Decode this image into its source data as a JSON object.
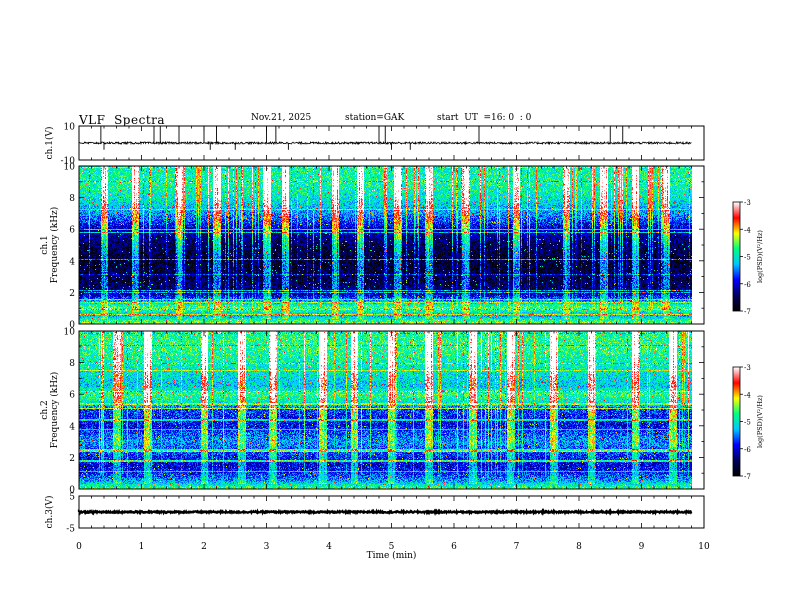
{
  "header": {
    "title": "VLF  Spectra",
    "date": "Nov.21, 2025",
    "station": "station=GAK",
    "ut_label": "start  UT  =",
    "ut_value": "16: 0  : 0"
  },
  "chart_data": [
    {
      "id": "ch1-waveform",
      "type": "line",
      "ylabel": "ch.1(V)",
      "ylim": [
        -10,
        10
      ],
      "yticks": [
        "10",
        "-10"
      ],
      "xlim": [
        0,
        10
      ],
      "baseline": 0,
      "noise_amplitude": 0.6,
      "spikes_min": [
        0.35,
        0.4,
        1.2,
        1.3,
        1.6,
        2.0,
        2.1,
        2.2,
        2.5,
        3.0,
        3.15,
        3.35,
        4.8,
        4.9,
        5.0,
        5.3,
        6.4,
        8.5,
        8.7
      ],
      "x_end_min": 9.8
    },
    {
      "id": "ch1-spectrogram",
      "type": "heatmap",
      "ylabel_top": "ch.1",
      "ylabel": "Frequency (kHz)",
      "ylim": [
        0,
        10
      ],
      "yticks": [
        "0",
        "2",
        "4",
        "6",
        "8",
        "10"
      ],
      "xlim": [
        0,
        10
      ],
      "x_end_min": 9.8,
      "colorbar": {
        "label": "log(PSD)(V²/Hz)",
        "range": [
          -7,
          -3
        ],
        "ticks": [
          "-3",
          "-4",
          "-5",
          "-6",
          "-7"
        ]
      },
      "profile_freq_khz": [
        0,
        0.5,
        1,
        2,
        3,
        4,
        5,
        6,
        6.5,
        7,
        8,
        9,
        10
      ],
      "profile_log_psd": [
        -4.4,
        -5.3,
        -4.6,
        -6.4,
        -6.6,
        -6.7,
        -6.5,
        -6.1,
        -5.7,
        -5.4,
        -5.0,
        -4.8,
        -4.9
      ],
      "emission_bursts_min": [
        0.4,
        0.9,
        1.6,
        2.2,
        3.0,
        3.3,
        4.1,
        4.5,
        5.1,
        5.6,
        6.2,
        7.0,
        7.8,
        8.4,
        8.9,
        9.4
      ]
    },
    {
      "id": "ch2-spectrogram",
      "type": "heatmap",
      "ylabel_top": "ch.2",
      "ylabel": "Frequency (kHz)",
      "ylim": [
        0,
        10
      ],
      "yticks": [
        "0",
        "2",
        "4",
        "6",
        "8",
        "10"
      ],
      "xlim": [
        0,
        10
      ],
      "x_end_min": 9.8,
      "colorbar": {
        "label": "log(PSD)(V²/Hz)",
        "range": [
          -7,
          -3
        ],
        "ticks": [
          "-3",
          "-4",
          "-5",
          "-6",
          "-7"
        ]
      },
      "profile_freq_khz": [
        0,
        0.5,
        1,
        1.5,
        2,
        3,
        4,
        5,
        5.5,
        6,
        6.5,
        7,
        8,
        9,
        10
      ],
      "profile_log_psd": [
        -4.6,
        -5.4,
        -5.8,
        -6.0,
        -5.8,
        -5.4,
        -5.9,
        -5.7,
        -5.0,
        -4.7,
        -5.2,
        -5.1,
        -4.9,
        -4.7,
        -4.8
      ],
      "emission_bursts_min": [
        0.6,
        1.1,
        2.0,
        2.6,
        3.1,
        3.9,
        4.4,
        5.0,
        5.6,
        6.3,
        6.9,
        7.6,
        8.2,
        8.9,
        9.5
      ]
    },
    {
      "id": "ch3-waveform",
      "type": "line",
      "ylabel": "ch.3(V)",
      "ylim": [
        -5,
        5
      ],
      "yticks": [
        "5",
        "-5"
      ],
      "xlim": [
        0,
        10
      ],
      "baseline": 0,
      "noise_amplitude": 0.25,
      "x_end_min": 9.8
    }
  ],
  "x_axis": {
    "label": "Time  (min)",
    "ticks": [
      "0",
      "1",
      "2",
      "3",
      "4",
      "5",
      "6",
      "7",
      "8",
      "9",
      "10"
    ]
  },
  "colors": {
    "colormap": [
      "#000000",
      "#000060",
      "#0000ff",
      "#00c8ff",
      "#00ff80",
      "#ffff00",
      "#ff0000",
      "#ffffff"
    ]
  }
}
